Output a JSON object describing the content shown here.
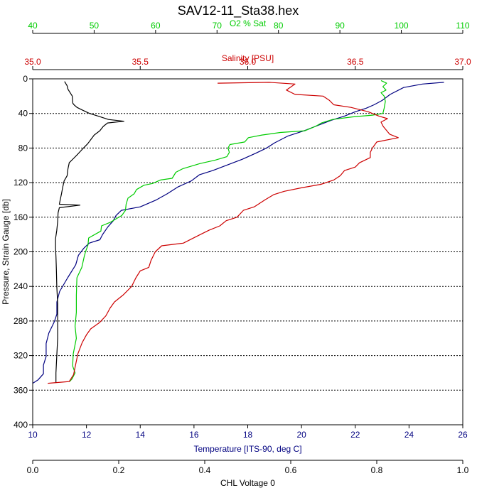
{
  "chart_data": {
    "type": "line",
    "title": "SAV12-11_Sta38.hex",
    "grid": "horizontal dashed",
    "y_axis": {
      "label": "Pressure, Strain Gauge [db]",
      "range": [
        0,
        400
      ],
      "inverted": true,
      "ticks": [
        "0",
        "40",
        "80",
        "120",
        "160",
        "200",
        "240",
        "280",
        "320",
        "360",
        "400"
      ]
    },
    "axes": {
      "o2": {
        "label": "O2 % Sat",
        "color": "#00cc00",
        "position": "top",
        "range": [
          40,
          110
        ],
        "ticks": [
          "40",
          "50",
          "60",
          "70",
          "80",
          "90",
          "100",
          "110"
        ]
      },
      "salinity": {
        "label": "Salinity [PSU]",
        "color": "#cc0000",
        "position": "top",
        "range": [
          35.0,
          37.0
        ],
        "ticks": [
          "35.0",
          "35.5",
          "36.0",
          "36.5",
          "37.0"
        ]
      },
      "temperature": {
        "label": "Temperature [ITS-90, deg C]",
        "color": "#000080",
        "position": "bottom",
        "range": [
          10,
          26
        ],
        "ticks": [
          "10",
          "12",
          "14",
          "16",
          "18",
          "20",
          "22",
          "24",
          "26"
        ]
      },
      "chl": {
        "label": "CHL Voltage 0",
        "color": "#000000",
        "position": "bottom",
        "range": [
          0.0,
          1.0
        ],
        "ticks": [
          "0.0",
          "0.2",
          "0.4",
          "0.6",
          "0.8",
          "1.0"
        ]
      }
    },
    "series": [
      {
        "name": "Temperature [ITS-90, deg C]",
        "axis": "temperature",
        "color": "#000080",
        "points": [
          [
            25.3,
            4
          ],
          [
            24.5,
            6
          ],
          [
            23.8,
            10
          ],
          [
            23.3,
            18
          ],
          [
            23.0,
            25
          ],
          [
            22.7,
            30
          ],
          [
            22.4,
            34
          ],
          [
            22.0,
            38
          ],
          [
            21.6,
            43
          ],
          [
            21.1,
            48
          ],
          [
            20.6,
            54
          ],
          [
            20.1,
            60
          ],
          [
            19.5,
            66
          ],
          [
            19.0,
            74
          ],
          [
            18.7,
            80
          ],
          [
            18.3,
            86
          ],
          [
            17.8,
            93
          ],
          [
            17.2,
            100
          ],
          [
            16.7,
            106
          ],
          [
            16.2,
            111
          ],
          [
            15.9,
            118
          ],
          [
            15.4,
            125
          ],
          [
            15.0,
            133
          ],
          [
            14.6,
            140
          ],
          [
            14.0,
            148
          ],
          [
            13.3,
            152
          ],
          [
            13.1,
            158
          ],
          [
            13.0,
            164
          ],
          [
            12.8,
            171
          ],
          [
            12.6,
            180
          ],
          [
            12.5,
            186
          ],
          [
            12.1,
            190
          ],
          [
            11.9,
            196
          ],
          [
            11.7,
            204
          ],
          [
            11.6,
            215
          ],
          [
            11.3,
            230
          ],
          [
            11.0,
            246
          ],
          [
            10.9,
            258
          ],
          [
            10.9,
            272
          ],
          [
            10.8,
            281
          ],
          [
            10.6,
            294
          ],
          [
            10.5,
            306
          ],
          [
            10.5,
            321
          ],
          [
            10.4,
            331
          ],
          [
            10.4,
            341
          ],
          [
            10.2,
            348
          ],
          [
            10.0,
            352
          ]
        ]
      },
      {
        "name": "O2 % Sat",
        "axis": "o2",
        "color": "#00cc00",
        "points": [
          [
            96.7,
            2
          ],
          [
            97.6,
            5
          ],
          [
            97.0,
            9
          ],
          [
            97.5,
            13
          ],
          [
            96.7,
            16
          ],
          [
            97.2,
            20
          ],
          [
            97.4,
            26
          ],
          [
            97.2,
            34
          ],
          [
            97.0,
            40
          ],
          [
            95.3,
            42
          ],
          [
            92.0,
            44
          ],
          [
            88.8,
            47
          ],
          [
            87.0,
            51
          ],
          [
            86.0,
            55
          ],
          [
            84.3,
            60
          ],
          [
            80.3,
            62
          ],
          [
            77.3,
            65
          ],
          [
            75.1,
            68
          ],
          [
            74.5,
            73
          ],
          [
            72.1,
            76
          ],
          [
            71.8,
            80
          ],
          [
            72.0,
            85
          ],
          [
            71.6,
            90
          ],
          [
            69.7,
            94
          ],
          [
            67.2,
            98
          ],
          [
            64.4,
            104
          ],
          [
            63.3,
            108
          ],
          [
            62.7,
            115
          ],
          [
            60.8,
            117
          ],
          [
            59.5,
            121
          ],
          [
            58.1,
            123
          ],
          [
            56.9,
            128
          ],
          [
            56.5,
            133
          ],
          [
            55.5,
            138
          ],
          [
            55.2,
            145
          ],
          [
            55.1,
            152
          ],
          [
            54.5,
            158
          ],
          [
            53.3,
            163
          ],
          [
            52.6,
            166
          ],
          [
            51.2,
            170
          ],
          [
            51.1,
            176
          ],
          [
            49.1,
            184
          ],
          [
            49.0,
            192
          ],
          [
            48.6,
            200
          ],
          [
            48.4,
            205
          ],
          [
            48.0,
            218
          ],
          [
            47.2,
            230
          ],
          [
            47.1,
            250
          ],
          [
            47.1,
            270
          ],
          [
            46.9,
            286
          ],
          [
            47.1,
            300
          ],
          [
            46.6,
            318
          ],
          [
            46.5,
            332
          ],
          [
            46.9,
            340
          ],
          [
            46.4,
            347
          ],
          [
            46.0,
            350
          ]
        ]
      },
      {
        "name": "Salinity [PSU]",
        "axis": "salinity",
        "color": "#cc0000",
        "points": [
          [
            35.86,
            5
          ],
          [
            36.1,
            4
          ],
          [
            36.22,
            6
          ],
          [
            36.18,
            13
          ],
          [
            36.22,
            18
          ],
          [
            36.35,
            20
          ],
          [
            36.38,
            25
          ],
          [
            36.4,
            30
          ],
          [
            36.48,
            33
          ],
          [
            36.56,
            38
          ],
          [
            36.61,
            43
          ],
          [
            36.65,
            46
          ],
          [
            36.62,
            50
          ],
          [
            36.63,
            55
          ],
          [
            36.64,
            58
          ],
          [
            36.66,
            64
          ],
          [
            36.7,
            68
          ],
          [
            36.6,
            73
          ],
          [
            36.58,
            80
          ],
          [
            36.57,
            85
          ],
          [
            36.57,
            91
          ],
          [
            36.52,
            97
          ],
          [
            36.5,
            102
          ],
          [
            36.45,
            106
          ],
          [
            36.43,
            112
          ],
          [
            36.4,
            117
          ],
          [
            36.34,
            122
          ],
          [
            36.25,
            126
          ],
          [
            36.17,
            130
          ],
          [
            36.12,
            134
          ],
          [
            36.08,
            140
          ],
          [
            36.03,
            148
          ],
          [
            35.98,
            152
          ],
          [
            35.95,
            160
          ],
          [
            35.9,
            164
          ],
          [
            35.87,
            170
          ],
          [
            35.82,
            175
          ],
          [
            35.78,
            180
          ],
          [
            35.74,
            185
          ],
          [
            35.7,
            190
          ],
          [
            35.6,
            193
          ],
          [
            35.57,
            200
          ],
          [
            35.55,
            210
          ],
          [
            35.54,
            218
          ],
          [
            35.5,
            222
          ],
          [
            35.48,
            230
          ],
          [
            35.46,
            240
          ],
          [
            35.42,
            250
          ],
          [
            35.38,
            258
          ],
          [
            35.36,
            265
          ],
          [
            35.34,
            274
          ],
          [
            35.31,
            282
          ],
          [
            35.27,
            289
          ],
          [
            35.25,
            296
          ],
          [
            35.23,
            305
          ],
          [
            35.21,
            318
          ],
          [
            35.2,
            330
          ],
          [
            35.19,
            342
          ],
          [
            35.17,
            350
          ],
          [
            35.07,
            352
          ]
        ]
      },
      {
        "name": "CHL Voltage 0",
        "axis": "chl",
        "color": "#000000",
        "points": [
          [
            0.074,
            3
          ],
          [
            0.08,
            8
          ],
          [
            0.082,
            12
          ],
          [
            0.092,
            20
          ],
          [
            0.093,
            28
          ],
          [
            0.096,
            30
          ],
          [
            0.103,
            33
          ],
          [
            0.115,
            36
          ],
          [
            0.132,
            40
          ],
          [
            0.152,
            43
          ],
          [
            0.176,
            47
          ],
          [
            0.212,
            49
          ],
          [
            0.174,
            51
          ],
          [
            0.164,
            55
          ],
          [
            0.156,
            60
          ],
          [
            0.143,
            65
          ],
          [
            0.128,
            75
          ],
          [
            0.118,
            80
          ],
          [
            0.105,
            87
          ],
          [
            0.095,
            92
          ],
          [
            0.085,
            97
          ],
          [
            0.082,
            104
          ],
          [
            0.08,
            112
          ],
          [
            0.073,
            118
          ],
          [
            0.07,
            125
          ],
          [
            0.067,
            133
          ],
          [
            0.064,
            140
          ],
          [
            0.062,
            145
          ],
          [
            0.11,
            146
          ],
          [
            0.062,
            149
          ],
          [
            0.059,
            155
          ],
          [
            0.058,
            165
          ],
          [
            0.056,
            175
          ],
          [
            0.053,
            185
          ],
          [
            0.053,
            195
          ],
          [
            0.054,
            205
          ],
          [
            0.055,
            220
          ],
          [
            0.056,
            240
          ],
          [
            0.058,
            260
          ],
          [
            0.058,
            280
          ],
          [
            0.058,
            300
          ],
          [
            0.056,
            320
          ],
          [
            0.054,
            340
          ],
          [
            0.054,
            351
          ]
        ]
      }
    ]
  }
}
